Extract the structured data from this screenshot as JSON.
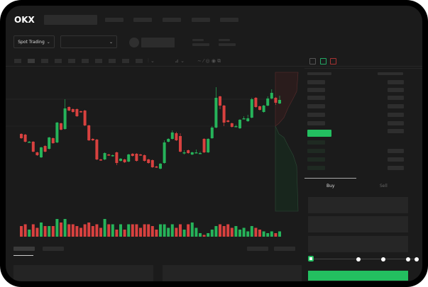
{
  "header": {
    "logo": "OKX",
    "nav_items": 4
  },
  "controls": {
    "market_type": "Spot Trading",
    "chevron": "chevron-down-icon"
  },
  "trade_panel": {
    "tabs": [
      {
        "label": "Buy",
        "active": true
      },
      {
        "label": "Sell",
        "active": false
      }
    ],
    "slider_percent": 0,
    "slider_stops": [
      0,
      25,
      50,
      75,
      100
    ]
  },
  "colors": {
    "up": "#26b35a",
    "down": "#d8413f",
    "background": "#1b1b1b",
    "accent": "#23bf60"
  },
  "chart_data": {
    "type": "candlestick",
    "candles": [
      [
        69,
        63,
        70,
        62
      ],
      [
        68,
        58,
        69,
        57
      ],
      [
        58,
        58,
        59,
        57
      ],
      [
        58,
        44,
        59,
        43
      ],
      [
        43,
        39,
        44,
        38
      ],
      [
        36,
        50,
        51,
        35
      ],
      [
        52,
        44,
        53,
        43
      ],
      [
        48,
        64,
        65,
        47
      ],
      [
        63,
        56,
        64,
        55
      ],
      [
        57,
        85,
        86,
        56
      ],
      [
        84,
        75,
        85,
        74
      ],
      [
        76,
        105,
        118,
        75
      ],
      [
        107,
        102,
        108,
        101
      ],
      [
        104,
        100,
        105,
        99
      ],
      [
        104,
        94,
        105,
        93
      ],
      [
        101,
        100,
        102,
        99
      ],
      [
        102,
        81,
        103,
        80
      ],
      [
        81,
        60,
        82,
        59
      ],
      [
        62,
        60,
        63,
        59
      ],
      [
        61,
        33,
        62,
        32
      ],
      [
        33,
        32,
        34,
        31
      ],
      [
        33,
        42,
        43,
        32
      ],
      [
        40,
        39,
        41,
        38
      ],
      [
        38,
        39,
        40,
        37
      ],
      [
        43,
        28,
        44,
        25
      ],
      [
        31,
        34,
        35,
        30
      ],
      [
        33,
        29,
        34,
        28
      ],
      [
        30,
        40,
        41,
        29
      ],
      [
        41,
        38,
        42,
        37
      ],
      [
        41,
        31,
        42,
        30
      ],
      [
        40,
        39,
        41,
        38
      ],
      [
        39,
        31,
        40,
        30
      ],
      [
        33,
        28,
        34,
        27
      ],
      [
        32,
        22,
        33,
        21
      ],
      [
        23,
        22,
        24,
        21
      ],
      [
        20,
        27,
        28,
        19
      ],
      [
        28,
        57,
        60,
        27
      ],
      [
        58,
        62,
        63,
        57
      ],
      [
        62,
        71,
        74,
        61
      ],
      [
        70,
        60,
        72,
        59
      ],
      [
        66,
        44,
        70,
        43
      ],
      [
        43,
        43,
        46,
        40
      ],
      [
        46,
        42,
        47,
        41
      ],
      [
        40,
        43,
        44,
        39
      ],
      [
        43,
        43,
        47,
        42
      ],
      [
        42,
        42,
        44,
        41
      ],
      [
        62,
        43,
        63,
        42
      ],
      [
        43,
        62,
        63,
        42
      ],
      [
        63,
        78,
        80,
        62
      ],
      [
        78,
        120,
        135,
        77
      ],
      [
        122,
        109,
        123,
        104
      ],
      [
        109,
        85,
        110,
        80
      ],
      [
        88,
        86,
        89,
        85
      ],
      [
        84,
        79,
        85,
        78
      ],
      [
        80,
        80,
        82,
        79
      ],
      [
        77,
        89,
        90,
        76
      ],
      [
        91,
        91,
        94,
        90
      ],
      [
        87,
        91,
        96,
        86
      ],
      [
        92,
        118,
        120,
        91
      ],
      [
        120,
        107,
        121,
        106
      ],
      [
        108,
        103,
        109,
        102
      ],
      [
        100,
        109,
        110,
        99
      ],
      [
        109,
        119,
        122,
        108
      ],
      [
        119,
        127,
        132,
        118
      ],
      [
        120,
        113,
        121,
        110
      ],
      [
        112,
        117,
        123,
        111
      ]
    ],
    "volume": [
      6,
      7,
      4,
      7,
      5,
      8,
      6,
      6,
      6,
      10,
      8,
      10,
      7,
      7,
      6,
      5,
      7,
      8,
      6,
      7,
      5,
      10,
      7,
      7,
      4,
      7,
      4,
      7,
      7,
      7,
      5,
      7,
      7,
      6,
      4,
      7,
      7,
      5,
      7,
      5,
      7,
      4,
      7,
      8,
      5,
      2,
      1,
      2,
      4,
      6,
      7,
      6,
      7,
      5,
      6,
      4,
      5,
      3,
      6,
      5,
      4,
      3,
      2,
      3,
      2,
      3
    ]
  }
}
